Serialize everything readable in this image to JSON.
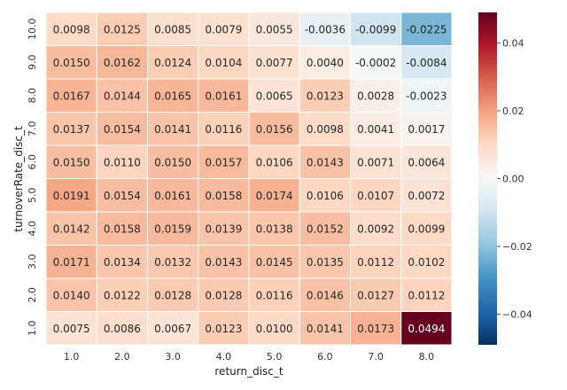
{
  "chart_data": {
    "type": "heatmap",
    "xlabel": "return_disc_t",
    "ylabel": "turnoverRate_disc_t",
    "x_categories": [
      "1.0",
      "2.0",
      "3.0",
      "4.0",
      "5.0",
      "6.0",
      "7.0",
      "8.0"
    ],
    "y_categories": [
      "10.0",
      "9.0",
      "8.0",
      "7.0",
      "6.0",
      "5.0",
      "4.0",
      "3.0",
      "2.0",
      "1.0"
    ],
    "values": [
      [
        0.0098,
        0.0125,
        0.0085,
        0.0079,
        0.0055,
        -0.0036,
        -0.0099,
        -0.0225
      ],
      [
        0.015,
        0.0162,
        0.0124,
        0.0104,
        0.0077,
        0.004,
        -0.0002,
        -0.0084
      ],
      [
        0.0167,
        0.0144,
        0.0165,
        0.0161,
        0.0065,
        0.0123,
        0.0028,
        -0.0023
      ],
      [
        0.0137,
        0.0154,
        0.0141,
        0.0116,
        0.0156,
        0.0098,
        0.0041,
        0.0017
      ],
      [
        0.015,
        0.011,
        0.015,
        0.0157,
        0.0106,
        0.0143,
        0.0071,
        0.0064
      ],
      [
        0.0191,
        0.0154,
        0.0161,
        0.0158,
        0.0174,
        0.0106,
        0.0107,
        0.0072
      ],
      [
        0.0142,
        0.0158,
        0.0159,
        0.0139,
        0.0138,
        0.0152,
        0.0092,
        0.0099
      ],
      [
        0.0171,
        0.0134,
        0.0132,
        0.0143,
        0.0145,
        0.0135,
        0.0112,
        0.0102
      ],
      [
        0.014,
        0.0122,
        0.0128,
        0.0128,
        0.0116,
        0.0146,
        0.0127,
        0.0112
      ],
      [
        0.0075,
        0.0086,
        0.0067,
        0.0123,
        0.01,
        0.0141,
        0.0173,
        0.0494
      ]
    ],
    "value_labels": [
      [
        "0.0098",
        "0.0125",
        "0.0085",
        "0.0079",
        "0.0055",
        "-0.0036",
        "-0.0099",
        "-0.0225"
      ],
      [
        "0.0150",
        "0.0162",
        "0.0124",
        "0.0104",
        "0.0077",
        "0.0040",
        "-0.0002",
        "-0.0084"
      ],
      [
        "0.0167",
        "0.0144",
        "0.0165",
        "0.0161",
        "0.0065",
        "0.0123",
        "0.0028",
        "-0.0023"
      ],
      [
        "0.0137",
        "0.0154",
        "0.0141",
        "0.0116",
        "0.0156",
        "0.0098",
        "0.0041",
        "0.0017"
      ],
      [
        "0.0150",
        "0.0110",
        "0.0150",
        "0.0157",
        "0.0106",
        "0.0143",
        "0.0071",
        "0.0064"
      ],
      [
        "0.0191",
        "0.0154",
        "0.0161",
        "0.0158",
        "0.0174",
        "0.0106",
        "0.0107",
        "0.0072"
      ],
      [
        "0.0142",
        "0.0158",
        "0.0159",
        "0.0139",
        "0.0138",
        "0.0152",
        "0.0092",
        "0.0099"
      ],
      [
        "0.0171",
        "0.0134",
        "0.0132",
        "0.0143",
        "0.0145",
        "0.0135",
        "0.0112",
        "0.0102"
      ],
      [
        "0.0140",
        "0.0122",
        "0.0128",
        "0.0128",
        "0.0116",
        "0.0146",
        "0.0127",
        "0.0112"
      ],
      [
        "0.0075",
        "0.0086",
        "0.0067",
        "0.0123",
        "0.0100",
        "0.0141",
        "0.0173",
        "0.0494"
      ]
    ],
    "colorbar": {
      "cmap": "RdBu_r",
      "vmin": -0.049,
      "vmax": 0.049,
      "ticks": [
        -0.04,
        -0.02,
        0.0,
        0.02,
        0.04
      ],
      "tick_labels": [
        "−0.04",
        "−0.02",
        "0.00",
        "0.02",
        "0.04"
      ]
    },
    "grid": false,
    "legend": "colorbar-right"
  }
}
